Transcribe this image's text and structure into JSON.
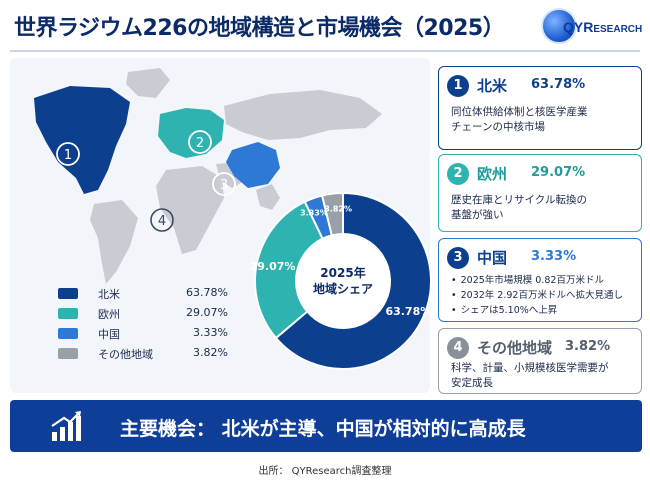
{
  "title": "世界ラジウム226の地域構造と市場機会（2025）",
  "logo": {
    "brand": "QYR",
    "suffix": "ESEARCH"
  },
  "colors": {
    "north_america": "#0d3f8f",
    "europe": "#2eb3b0",
    "china": "#2e78d6",
    "other": "#9aa0a8",
    "banner": "#0f3e98"
  },
  "map": {
    "markers": [
      "1",
      "2",
      "3",
      "4"
    ]
  },
  "chart_data": {
    "type": "pie",
    "variant": "donut",
    "center_label": [
      "2025年",
      "地域シェア"
    ],
    "categories": [
      "北米",
      "欧州",
      "中国",
      "その他地域"
    ],
    "values": [
      63.78,
      29.07,
      3.33,
      3.82
    ],
    "value_labels": [
      "63.78%",
      "29.07%",
      "3.33%",
      "3.82%"
    ],
    "slice_order_clockwise_from_top": [
      "北米",
      "欧州",
      "中国",
      "その他地域"
    ]
  },
  "legend": [
    {
      "name": "北米",
      "value": "63.78%",
      "color": "#0d3f8f"
    },
    {
      "name": "欧州",
      "value": "29.07%",
      "color": "#2eb3b0"
    },
    {
      "name": "中国",
      "value": "3.33%",
      "color": "#2e78d6"
    },
    {
      "name": "その他地域",
      "value": "3.82%",
      "color": "#9aa0a8"
    }
  ],
  "cards": [
    {
      "num": "1",
      "title": "北米",
      "pct": "63.78%",
      "lines": [
        "同位体供給体制と核医学産業",
        "チェーンの中核市場"
      ]
    },
    {
      "num": "2",
      "title": "欧州",
      "pct": "29.07%",
      "lines": [
        "歴史在庫とリサイクル転換の",
        "基盤が強い"
      ]
    },
    {
      "num": "3",
      "title": "中国",
      "pct": "3.33%",
      "bullets": [
        "2025年市場規模 0.82百万米ドル",
        "2032年 2.92百万米ドルへ拡大見通し",
        "シェアは5.10%へ上昇"
      ]
    },
    {
      "num": "4",
      "title": "その他地域",
      "pct": "3.82%",
      "lines": [
        "科学、計量、小規模核医学需要が",
        "安定成長"
      ]
    }
  ],
  "banner": {
    "text": "主要機会： 北米が主導、中国が相対的に高成長"
  },
  "source": "出所： QYResearch調査整理"
}
